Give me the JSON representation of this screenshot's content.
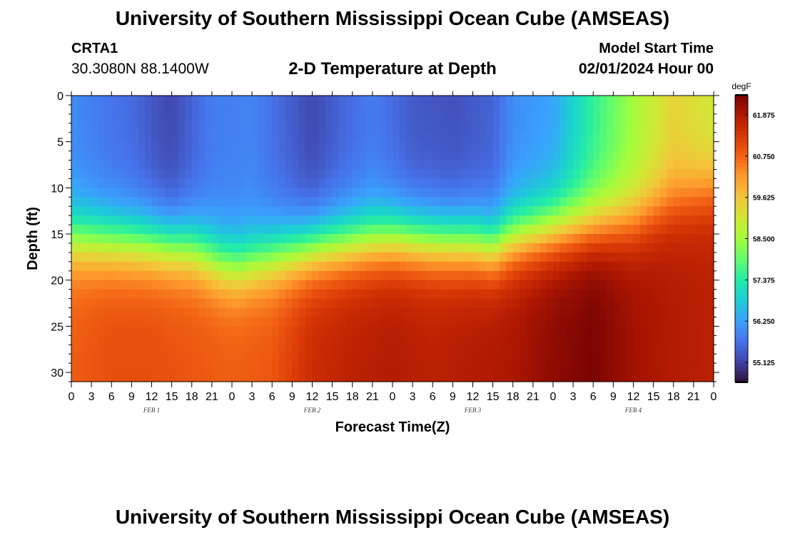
{
  "header": {
    "title": "University of Southern Mississippi Ocean Cube (AMSEAS)",
    "station_id": "CRTA1",
    "coordinates": "30.3080N  88.1400W",
    "subtitle": "2-D Temperature at Depth",
    "model_start_label": "Model Start Time",
    "model_start_value": "02/01/2024 Hour 00"
  },
  "footer": {
    "title": "University of Southern Mississippi Ocean Cube (AMSEAS)"
  },
  "chart_data": {
    "type": "heatmap",
    "title": "2-D Temperature at Depth",
    "xlabel": "Forecast Time(Z)",
    "ylabel": "Depth (ft)",
    "x_hours": [
      0,
      96
    ],
    "x_tick_labels": [
      "0",
      "3",
      "6",
      "9",
      "12",
      "15",
      "18",
      "21",
      "0",
      "3",
      "6",
      "9",
      "12",
      "15",
      "18",
      "21",
      "0",
      "3",
      "6",
      "9",
      "12",
      "15",
      "18",
      "21",
      "0",
      "3",
      "6",
      "9",
      "12",
      "15",
      "18",
      "21",
      "0"
    ],
    "day_labels": [
      {
        "label": "FEB 1",
        "hour": 12
      },
      {
        "label": "FEB 2",
        "hour": 36
      },
      {
        "label": "FEB 3",
        "hour": 60
      },
      {
        "label": "FEB 4",
        "hour": 84
      }
    ],
    "ylim": [
      0,
      31
    ],
    "y_ticks": [
      0,
      5,
      10,
      15,
      20,
      25,
      30
    ],
    "colorbar": {
      "unit": "degF",
      "min": 54.6,
      "max": 62.4,
      "ticks": [
        "61.875",
        "60.750",
        "59.625",
        "58.500",
        "57.375",
        "56.250",
        "55.125"
      ],
      "colors": [
        "#30123b",
        "#4145ab",
        "#4675ed",
        "#39a2fc",
        "#1bcfd4",
        "#24eca6",
        "#61fc6c",
        "#a4fc3b",
        "#d1e834",
        "#f3c63a",
        "#fe9b2d",
        "#f36315",
        "#d93806",
        "#b11901",
        "#7a0403"
      ]
    },
    "top_layer": {
      "x_hours": [
        0,
        6,
        9,
        13,
        15,
        21,
        27,
        36,
        40,
        45,
        51,
        57,
        63,
        66,
        72,
        78,
        84,
        90,
        96
      ],
      "values": [
        56.0,
        55.7,
        55.6,
        55.3,
        55.2,
        55.8,
        55.9,
        55.2,
        55.5,
        55.8,
        55.4,
        55.3,
        55.5,
        56.0,
        56.3,
        57.5,
        58.5,
        59.4,
        59.0
      ]
    },
    "thermocline_depth_ft": {
      "x_hours": [
        0,
        6,
        12,
        18,
        22,
        25,
        30,
        36,
        42,
        48,
        54,
        60,
        63,
        66,
        72,
        78,
        84,
        87,
        90,
        96
      ],
      "values": [
        15.5,
        15.8,
        16.0,
        16.5,
        18.0,
        18.5,
        17.5,
        16.5,
        16.0,
        15.5,
        15.8,
        16.0,
        16.5,
        15.5,
        14.5,
        14.0,
        13.5,
        12.5,
        11.5,
        10.0
      ]
    },
    "bottom_layer": {
      "x_hours": [
        0,
        6,
        12,
        18,
        24,
        30,
        36,
        42,
        48,
        54,
        60,
        66,
        72,
        78,
        84,
        90,
        96
      ],
      "values": [
        60.8,
        61.0,
        61.0,
        60.9,
        60.8,
        60.9,
        61.5,
        61.7,
        61.8,
        61.7,
        61.8,
        61.9,
        62.2,
        62.4,
        62.0,
        61.8,
        61.7
      ]
    }
  }
}
